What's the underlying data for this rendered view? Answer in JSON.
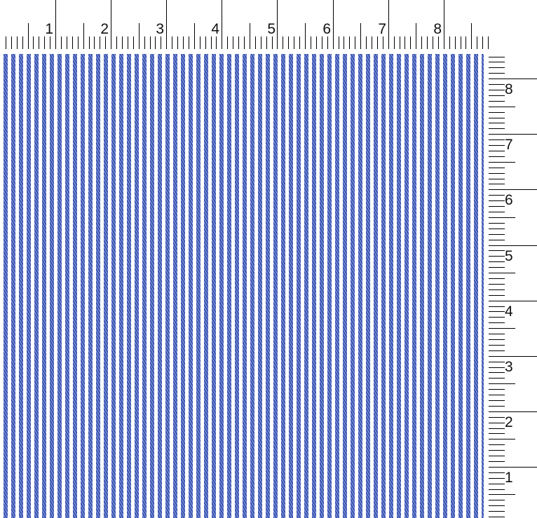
{
  "ruler_top": {
    "labels": [
      "1",
      "2",
      "3",
      "4",
      "5",
      "6",
      "7",
      "8"
    ],
    "unit_subdivisions": 10
  },
  "ruler_right": {
    "labels": [
      "8",
      "7",
      "6",
      "5",
      "4",
      "3",
      "2",
      "1"
    ],
    "unit_subdivisions": 10
  },
  "swatch": {
    "pattern": "vertical-stripes",
    "stripe_color": "#3a53b0",
    "ground_color": "#ffffff"
  }
}
